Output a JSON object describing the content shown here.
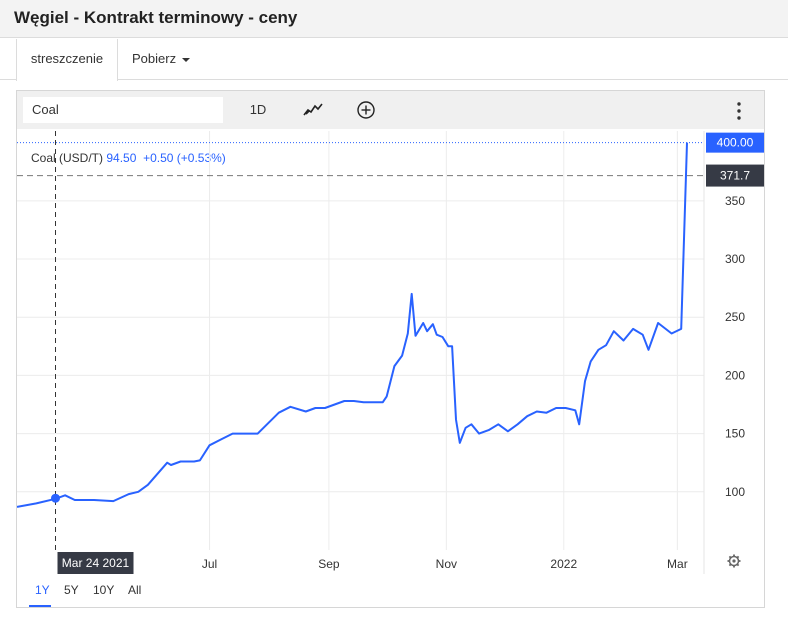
{
  "header": {
    "title": "Węgiel - Kontrakt terminowy - ceny"
  },
  "tabs": {
    "summary": "streszczenie",
    "download": "Pobierz"
  },
  "toolbar": {
    "symbol": "Coal",
    "interval": "1D"
  },
  "legend": {
    "name": "Coal (USD/T)",
    "price": "94.50",
    "change": "+0.50",
    "change_pct": "(+0.53%)"
  },
  "range_buttons": [
    "1Y",
    "5Y",
    "10Y",
    "All"
  ],
  "colors": {
    "line": "#2962ff",
    "last_price_badge": "#2962ff",
    "crosshair_badge": "#363a45"
  },
  "chart_data": {
    "type": "line",
    "ylim": [
      50,
      410
    ],
    "yticks": [
      100,
      150,
      200,
      250,
      300,
      350
    ],
    "xticks": [
      {
        "label": "Jul",
        "day": 100
      },
      {
        "label": "Sep",
        "day": 162
      },
      {
        "label": "Nov",
        "day": 223
      },
      {
        "label": "2022",
        "day": 284
      },
      {
        "label": "Mar",
        "day": 343
      }
    ],
    "last_price_label": "400.00",
    "last_price_value": 400,
    "crosshair": {
      "date_label": "Mar 24 2021",
      "day": 20,
      "value": 371.7,
      "value_label": "371.7",
      "point_value": 94.5
    },
    "series": [
      {
        "x": [
          0,
          10,
          20,
          25,
          30,
          40,
          50,
          58,
          63,
          68,
          78,
          80,
          85,
          92,
          95,
          100,
          106,
          112,
          125,
          136,
          142,
          150,
          155,
          160,
          170,
          175,
          180,
          190,
          192,
          196,
          200,
          203,
          205,
          207,
          211,
          213,
          216,
          218,
          221,
          224,
          226,
          228,
          230,
          233,
          236,
          240,
          245,
          250,
          255,
          260,
          265,
          270,
          275,
          280,
          285,
          290,
          292,
          295,
          298,
          302,
          306,
          310,
          315,
          320,
          325,
          328,
          333,
          340,
          345,
          348
        ],
        "y": [
          87,
          90,
          94,
          97,
          93,
          93,
          92,
          98,
          100,
          106,
          125,
          123,
          126,
          126,
          127,
          140,
          145,
          150,
          150,
          168,
          173,
          169,
          172,
          172,
          178,
          178,
          177,
          177,
          182,
          208,
          217,
          236,
          270,
          234,
          245,
          238,
          244,
          235,
          233,
          225,
          225,
          162,
          142,
          155,
          158,
          150,
          153,
          158,
          152,
          158,
          165,
          169,
          168,
          172,
          172,
          170,
          158,
          195,
          212,
          222,
          226,
          238,
          230,
          240,
          235,
          222,
          245,
          236,
          240,
          400
        ]
      }
    ]
  }
}
